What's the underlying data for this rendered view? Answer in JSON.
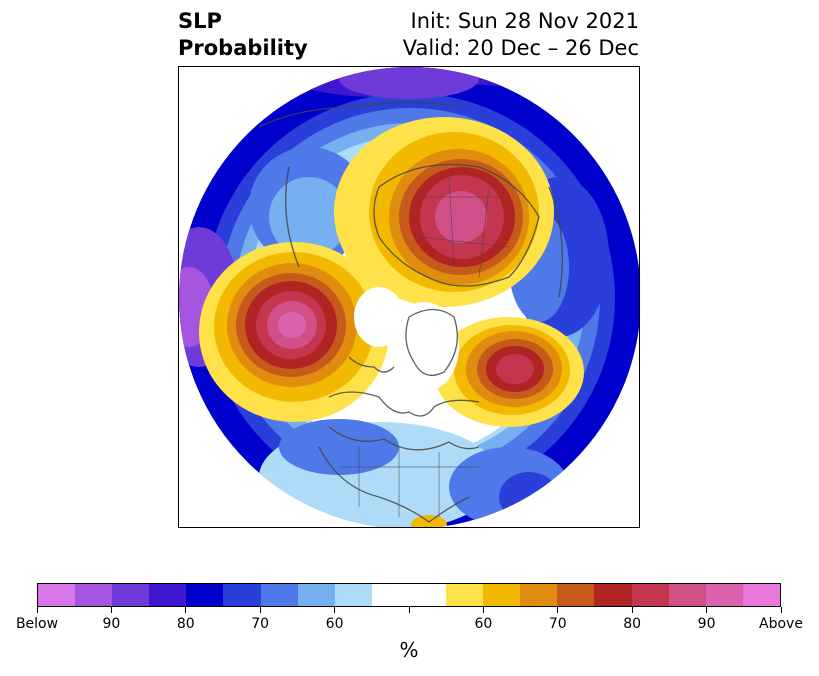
{
  "title": {
    "left_line1": "SLP",
    "left_line2": "Probability",
    "right_line1": "Init: Sun 28 Nov 2021",
    "right_line2": "Valid: 20 Dec – 26 Dec"
  },
  "colorbar": {
    "colors": [
      "#d877e8",
      "#a456e0",
      "#6e3bd9",
      "#3f17d0",
      "#0000cc",
      "#2a3fd9",
      "#4f78e8",
      "#76b0f0",
      "#aedcf8",
      "#ffffff",
      "#ffffff",
      "#ffe14a",
      "#f2b900",
      "#e08c0f",
      "#c55a1a",
      "#b02424",
      "#c43650",
      "#d2508a",
      "#dc62ae",
      "#e878da"
    ],
    "tick_labels": [
      "Below",
      "90",
      "80",
      "70",
      "60",
      "",
      "60",
      "70",
      "80",
      "90",
      "Above"
    ],
    "unit_label": "%"
  }
}
